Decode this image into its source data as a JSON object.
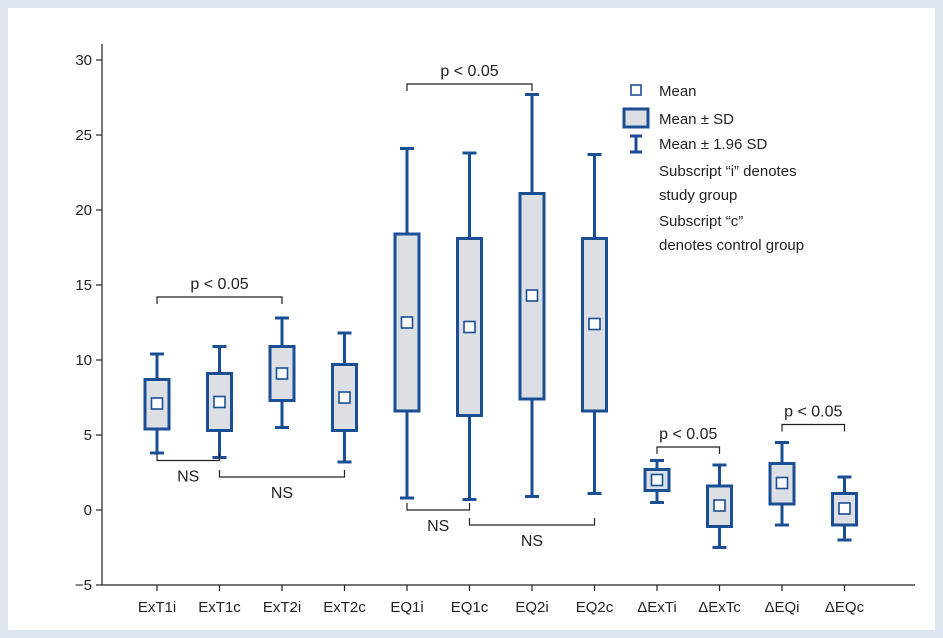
{
  "chart_data": {
    "type": "box",
    "categories": [
      "ExT1i",
      "ExT1c",
      "ExT2i",
      "ExT2c",
      "EQ1i",
      "EQ1c",
      "EQ2i",
      "EQ2c",
      "ΔExTi",
      "ΔExTc",
      "ΔEQi",
      "ΔEQc"
    ],
    "series": [
      {
        "mean": [
          7.1,
          7.2,
          9.1,
          7.5,
          12.5,
          12.2,
          14.3,
          12.4,
          2.0,
          0.3,
          1.8,
          0.1
        ],
        "sd_low": [
          5.4,
          5.3,
          7.3,
          5.3,
          6.6,
          6.3,
          7.4,
          6.6,
          1.3,
          -1.1,
          0.4,
          -1.0
        ],
        "sd_high": [
          8.7,
          9.1,
          10.9,
          9.7,
          18.4,
          18.1,
          21.1,
          18.1,
          2.7,
          1.6,
          3.1,
          1.1
        ],
        "ci_low": [
          3.8,
          3.5,
          5.5,
          3.2,
          0.8,
          0.7,
          0.9,
          1.1,
          0.5,
          -2.5,
          -1.0,
          -2.0
        ],
        "ci_high": [
          10.4,
          10.9,
          12.8,
          11.8,
          24.1,
          23.8,
          27.7,
          23.7,
          3.3,
          3.0,
          4.5,
          2.2
        ]
      }
    ],
    "ylim": [
      -5,
      30
    ],
    "yticks": [
      "30",
      "25",
      "20",
      "15",
      "10",
      "5",
      "0",
      "−5"
    ],
    "grid": false,
    "legend_position": "top-right",
    "legend": [
      "Mean",
      "Mean ± SD",
      "Mean ± 1.96 SD"
    ],
    "legend_notes": [
      "Subscript “i” denotes",
      "study group",
      "Subscript “c”",
      "denotes control group"
    ],
    "annotations": [
      {
        "text": "p < 0.05",
        "from": 0,
        "to": 2,
        "side": "above",
        "at": 14.2
      },
      {
        "text": "NS",
        "from": 0,
        "to": 1,
        "side": "below",
        "at": 3.3
      },
      {
        "text": "NS",
        "from": 1,
        "to": 3,
        "side": "below",
        "at": 2.2
      },
      {
        "text": "p < 0.05",
        "from": 4,
        "to": 6,
        "side": "above",
        "at": 28.4
      },
      {
        "text": "NS",
        "from": 4,
        "to": 5,
        "side": "below",
        "at": 0.0
      },
      {
        "text": "NS",
        "from": 5,
        "to": 7,
        "side": "below",
        "at": -1.0
      },
      {
        "text": "p < 0.05",
        "from": 8,
        "to": 9,
        "side": "above",
        "at": 4.2
      },
      {
        "text": "p < 0.05",
        "from": 10,
        "to": 11,
        "side": "above",
        "at": 5.7
      }
    ],
    "colors": {
      "stroke": "#1a4f95",
      "fill": "#dcdfe4",
      "axis": "#222222"
    }
  }
}
